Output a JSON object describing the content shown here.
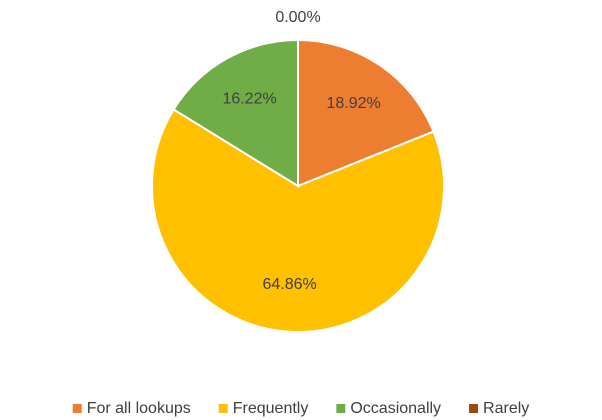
{
  "chart_data": {
    "type": "pie",
    "categories": [
      "For all lookups",
      "Frequently",
      "Occasionally",
      "Rarely"
    ],
    "values": [
      18.92,
      64.86,
      16.22,
      0.0
    ],
    "value_labels": [
      "18.92%",
      "64.86%",
      "16.22%",
      "0.00%"
    ],
    "colors": [
      "#ED7D31",
      "#FFC000",
      "#70AD47",
      "#9E480E"
    ],
    "legend": "bottom"
  }
}
